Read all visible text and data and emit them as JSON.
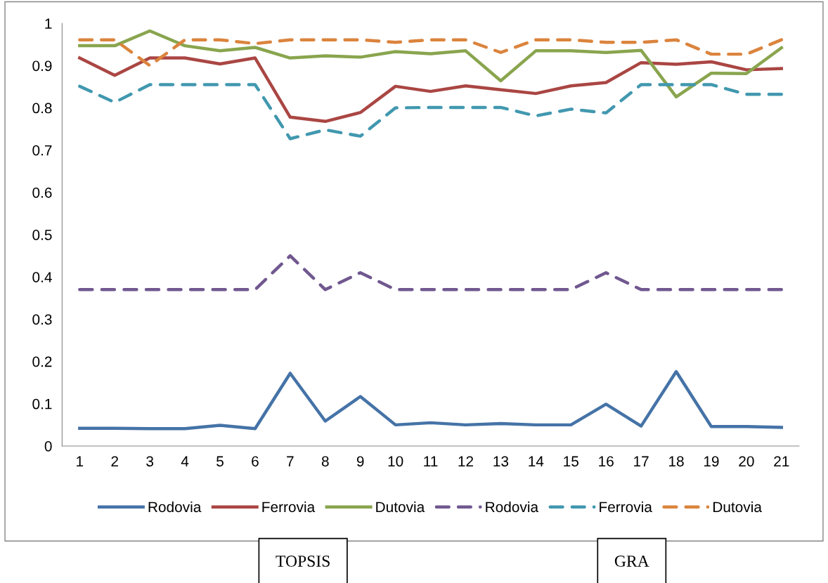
{
  "chart_data": {
    "type": "line",
    "categories": [
      "1",
      "2",
      "3",
      "4",
      "5",
      "6",
      "7",
      "8",
      "9",
      "10",
      "11",
      "12",
      "13",
      "14",
      "15",
      "16",
      "17",
      "18",
      "19",
      "20",
      "21"
    ],
    "series": [
      {
        "name": "Rodovia",
        "color": "#4573a7",
        "line_style": "solid",
        "values": [
          0.042,
          0.042,
          0.041,
          0.041,
          0.049,
          0.041,
          0.172,
          0.059,
          0.117,
          0.05,
          0.055,
          0.05,
          0.053,
          0.05,
          0.05,
          0.099,
          0.047,
          0.176,
          0.046,
          0.046,
          0.044
        ]
      },
      {
        "name": "Ferrovia",
        "color": "#aa4643",
        "line_style": "solid",
        "values": [
          0.918,
          0.877,
          0.918,
          0.918,
          0.904,
          0.918,
          0.778,
          0.768,
          0.789,
          0.851,
          0.839,
          0.852,
          0.843,
          0.834,
          0.852,
          0.86,
          0.907,
          0.903,
          0.909,
          0.89,
          0.893
        ]
      },
      {
        "name": "Dutovia",
        "color": "#89a54e",
        "line_style": "solid",
        "values": [
          0.947,
          0.947,
          0.982,
          0.947,
          0.935,
          0.943,
          0.918,
          0.923,
          0.92,
          0.933,
          0.928,
          0.935,
          0.864,
          0.935,
          0.935,
          0.931,
          0.936,
          0.826,
          0.882,
          0.881,
          0.942
        ]
      },
      {
        "name": "Rodovia",
        "color": "#71588f",
        "line_style": "dashed",
        "values": [
          0.37,
          0.37,
          0.37,
          0.37,
          0.37,
          0.37,
          0.45,
          0.37,
          0.41,
          0.37,
          0.37,
          0.37,
          0.37,
          0.37,
          0.37,
          0.41,
          0.37,
          0.37,
          0.37,
          0.37,
          0.37
        ]
      },
      {
        "name": "Ferrovia",
        "color": "#4198af",
        "line_style": "dashed",
        "values": [
          0.851,
          0.813,
          0.855,
          0.855,
          0.855,
          0.855,
          0.727,
          0.748,
          0.733,
          0.8,
          0.801,
          0.801,
          0.801,
          0.781,
          0.797,
          0.788,
          0.855,
          0.855,
          0.855,
          0.832,
          0.832
        ]
      },
      {
        "name": "Dutovia",
        "color": "#db843d",
        "line_style": "dashed",
        "values": [
          0.961,
          0.961,
          0.9,
          0.961,
          0.961,
          0.952,
          0.961,
          0.961,
          0.961,
          0.955,
          0.961,
          0.961,
          0.931,
          0.961,
          0.961,
          0.955,
          0.955,
          0.961,
          0.927,
          0.927,
          0.961
        ]
      }
    ],
    "ylim": [
      0,
      1
    ],
    "yticks": [
      0,
      {
        "value": 0.1,
        "label": "0.1"
      },
      {
        "value": 0.2,
        "label": "0.2"
      },
      {
        "value": 0.3,
        "label": "0.3"
      },
      {
        "value": 0.4,
        "label": "0.4"
      },
      {
        "value": 0.5,
        "label": "0.5"
      },
      {
        "value": 0.6,
        "label": "0.6"
      },
      {
        "value": 0.7,
        "label": "0.7"
      },
      {
        "value": 0.8,
        "label": "0.8"
      },
      {
        "value": 0.9,
        "label": "0.9"
      },
      1
    ],
    "grid": false,
    "legend": "bottom",
    "marker": "none",
    "annotations": [
      "TOPSIS",
      "GRA"
    ]
  }
}
